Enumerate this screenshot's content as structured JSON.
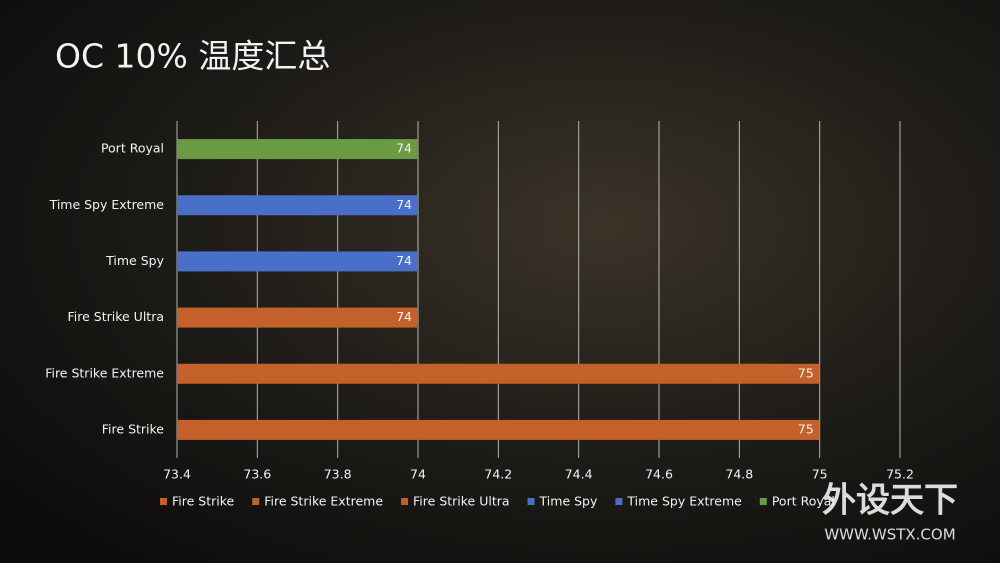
{
  "chart_data": {
    "type": "bar",
    "orientation": "horizontal",
    "title": "OC 10% 温度汇总",
    "categories": [
      "Fire Strike",
      "Fire Strike Extreme",
      "Fire Strike Ultra",
      "Time Spy",
      "Time Spy Extreme",
      "Port Royal"
    ],
    "values": [
      75,
      75,
      74,
      74,
      74,
      74
    ],
    "colors": [
      "#c4612a",
      "#c4612a",
      "#c4612a",
      "#4a6fc8",
      "#4a6fc8",
      "#6b9a44"
    ],
    "xlim": [
      73.4,
      75.2
    ],
    "xticks": [
      73.4,
      73.6,
      73.8,
      74,
      74.2,
      74.4,
      74.6,
      74.8,
      75,
      75.2
    ],
    "grid": true,
    "legend": "bottom"
  },
  "watermark": {
    "name": "外设天下",
    "url": "WWW.WSTX.COM"
  }
}
